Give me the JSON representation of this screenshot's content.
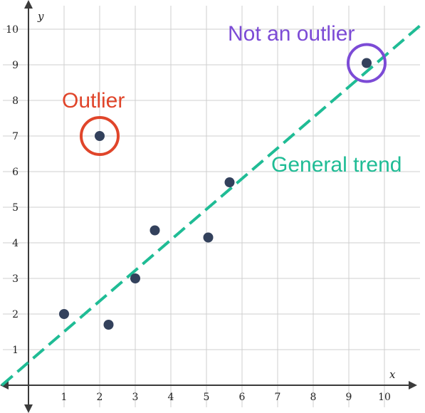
{
  "chart_data": {
    "type": "scatter",
    "xlabel": "x",
    "ylabel": "y",
    "xlim": [
      -0.75,
      10.85
    ],
    "ylim": [
      -0.75,
      10.75
    ],
    "grid": true,
    "x_ticks": [
      "1",
      "2",
      "3",
      "4",
      "5",
      "6",
      "7",
      "8",
      "9",
      "10"
    ],
    "y_ticks": [
      "1",
      "2",
      "3",
      "4",
      "5",
      "6",
      "7",
      "8",
      "9",
      "10"
    ],
    "points": [
      {
        "x": 1,
        "y": 2
      },
      {
        "x": 2.25,
        "y": 1.7
      },
      {
        "x": 3,
        "y": 3
      },
      {
        "x": 3.55,
        "y": 4.35
      },
      {
        "x": 5.05,
        "y": 4.15
      },
      {
        "x": 5.65,
        "y": 5.7
      },
      {
        "x": 2,
        "y": 7
      },
      {
        "x": 9.5,
        "y": 9.05
      }
    ],
    "point_color": "#33415c",
    "trend_line": {
      "label": "General trend",
      "color": "#1fbc95",
      "from": {
        "x": -0.75,
        "y": 0
      },
      "to": {
        "x": 11,
        "y": 10.1
      }
    },
    "annotations": [
      {
        "label": "Outlier",
        "color": "#e0452a",
        "x": 2,
        "y": 7
      },
      {
        "label": "Not an outlier",
        "color": "#7c4bd6",
        "x": 9.5,
        "y": 9.05
      }
    ]
  }
}
